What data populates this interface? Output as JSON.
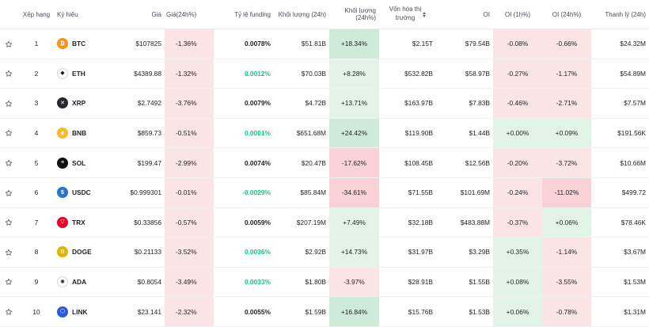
{
  "headers": {
    "rank": "Xếp hạng",
    "symbol": "Ký hiệu",
    "price": "Giá",
    "price_change": "Giá(24h%)",
    "funding": "Tỷ lệ funding",
    "volume": "Khối lượng (24h)",
    "volume_change": "Khối lượng (24h%)",
    "mcap_line1": "Vốn hóa thị",
    "mcap_line2": "trường",
    "oi": "OI",
    "oi_1h": "OI (1h%)",
    "oi_24h": "OI (24h%)",
    "liquidation": "Thanh lý (24h)"
  },
  "colors": {
    "red_bg": "#fbe4e6",
    "red_bg_strong": "#f8d2d6",
    "green_bg": "#e2f4e8",
    "green_bg_strong": "#cdebd8",
    "green_text": "#0ecb81"
  },
  "rows": [
    {
      "rank": "1",
      "symbol": "BTC",
      "icon": "btc-icon",
      "icon_color": "#f7931a",
      "icon_glyph": "₿",
      "price": "$107825",
      "price_change": "-1.36%",
      "funding": "0.0078%",
      "volume": "$51.81B",
      "volume_change": "+18.34%",
      "mcap": "$2.15T",
      "oi": "$79.54B",
      "oi_1h": "-0.08%",
      "oi_24h": "-0.66%",
      "liquidation": "$24.32M"
    },
    {
      "rank": "2",
      "symbol": "ETH",
      "icon": "eth-icon",
      "icon_color": "#ffffff",
      "icon_glyph": "◆",
      "price": "$4389.88",
      "price_change": "-1.32%",
      "funding": "0.0012%",
      "volume": "$70.03B",
      "volume_change": "+8.28%",
      "mcap": "$532.82B",
      "oi": "$58.97B",
      "oi_1h": "-0.27%",
      "oi_24h": "-1.17%",
      "liquidation": "$54.89M"
    },
    {
      "rank": "3",
      "symbol": "XRP",
      "icon": "xrp-icon",
      "icon_color": "#23292f",
      "icon_glyph": "✕",
      "price": "$2.7492",
      "price_change": "-3.76%",
      "funding": "0.0079%",
      "volume": "$4.72B",
      "volume_change": "+13.71%",
      "mcap": "$163.97B",
      "oi": "$7.83B",
      "oi_1h": "-0.46%",
      "oi_24h": "-2.71%",
      "liquidation": "$7.57M"
    },
    {
      "rank": "4",
      "symbol": "BNB",
      "icon": "bnb-icon",
      "icon_color": "#f3ba2f",
      "icon_glyph": "◈",
      "price": "$859.73",
      "price_change": "-0.51%",
      "funding": "0.0001%",
      "volume": "$651.68M",
      "volume_change": "+24.42%",
      "mcap": "$119.90B",
      "oi": "$1.44B",
      "oi_1h": "+0.00%",
      "oi_24h": "+0.09%",
      "liquidation": "$191.56K"
    },
    {
      "rank": "5",
      "symbol": "SOL",
      "icon": "sol-icon",
      "icon_color": "#111111",
      "icon_glyph": "≡",
      "price": "$199.47",
      "price_change": "-2.99%",
      "funding": "0.0074%",
      "volume": "$20.47B",
      "volume_change": "-17.62%",
      "mcap": "$108.45B",
      "oi": "$12.56B",
      "oi_1h": "-0.20%",
      "oi_24h": "-3.72%",
      "liquidation": "$10.66M"
    },
    {
      "rank": "6",
      "symbol": "USDC",
      "icon": "usdc-icon",
      "icon_color": "#2775ca",
      "icon_glyph": "$",
      "price": "$0.999301",
      "price_change": "-0.01%",
      "funding": "-0.0029%",
      "volume": "$85.84M",
      "volume_change": "-34.61%",
      "mcap": "$71.55B",
      "oi": "$101.69M",
      "oi_1h": "-0.24%",
      "oi_24h": "-11.02%",
      "liquidation": "$499.72"
    },
    {
      "rank": "7",
      "symbol": "TRX",
      "icon": "trx-icon",
      "icon_color": "#eb0029",
      "icon_glyph": "▽",
      "price": "$0.33856",
      "price_change": "-0.57%",
      "funding": "0.0059%",
      "volume": "$207.19M",
      "volume_change": "+7.49%",
      "mcap": "$32.18B",
      "oi": "$483.88M",
      "oi_1h": "-0.37%",
      "oi_24h": "+0.06%",
      "liquidation": "$78.46K"
    },
    {
      "rank": "8",
      "symbol": "DOGE",
      "icon": "doge-icon",
      "icon_color": "#e1b303",
      "icon_glyph": "Ð",
      "price": "$0.21133",
      "price_change": "-3.52%",
      "funding": "0.0036%",
      "volume": "$2.92B",
      "volume_change": "+14.73%",
      "mcap": "$31.97B",
      "oi": "$3.29B",
      "oi_1h": "+0.35%",
      "oi_24h": "-1.14%",
      "liquidation": "$3.67M"
    },
    {
      "rank": "9",
      "symbol": "ADA",
      "icon": "ada-icon",
      "icon_color": "#ffffff",
      "icon_glyph": "✺",
      "price": "$0.8054",
      "price_change": "-3.49%",
      "funding": "0.0033%",
      "volume": "$1.80B",
      "volume_change": "-3.97%",
      "mcap": "$28.91B",
      "oi": "$1.55B",
      "oi_1h": "+0.08%",
      "oi_24h": "-3.55%",
      "liquidation": "$1.53M"
    },
    {
      "rank": "10",
      "symbol": "LINK",
      "icon": "link-icon",
      "icon_color": "#2a5ada",
      "icon_glyph": "⬡",
      "price": "$23.141",
      "price_change": "-2.32%",
      "funding": "0.0055%",
      "volume": "$1.59B",
      "volume_change": "+16.84%",
      "mcap": "$15.76B",
      "oi": "$1.53B",
      "oi_1h": "+0.06%",
      "oi_24h": "-0.78%",
      "liquidation": "$1.31M"
    }
  ]
}
